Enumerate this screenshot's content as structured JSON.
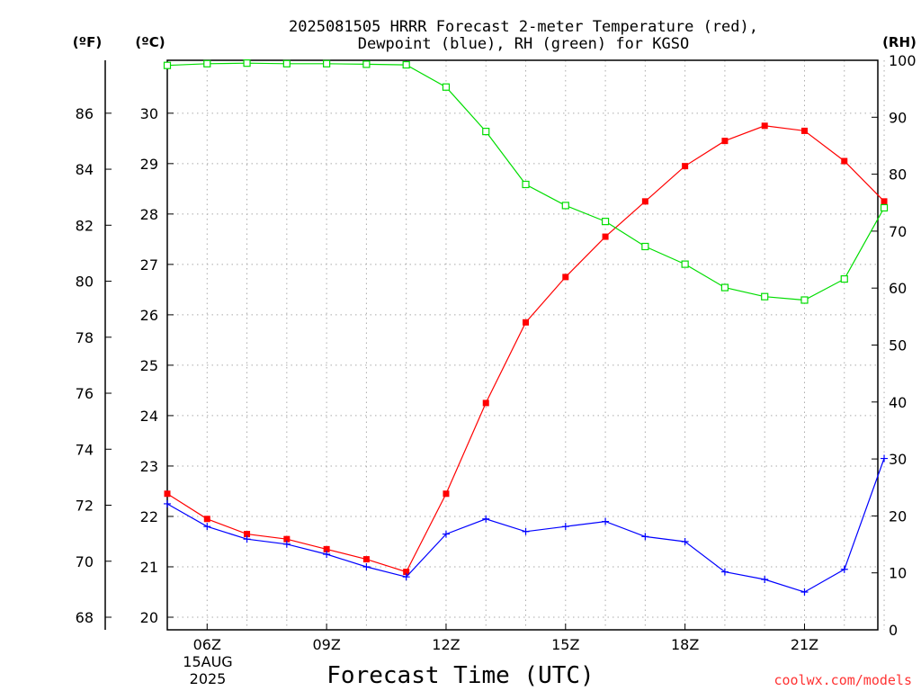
{
  "chart_data": {
    "type": "line",
    "title": "2025081505 HRRR Forecast 2-meter Temperature (red),",
    "subtitle": "Dewpoint (blue), RH (green) for KGSO",
    "xlabel": "Forecast Time (UTC)",
    "units": {
      "left_outer": "(ºF)",
      "left_inner": "(ºC)",
      "right": "(RH)"
    },
    "date_labels": [
      "15AUG",
      "2025"
    ],
    "x": [
      "05Z",
      "06Z",
      "07Z",
      "08Z",
      "09Z",
      "10Z",
      "11Z",
      "12Z",
      "13Z",
      "14Z",
      "15Z",
      "16Z",
      "17Z",
      "18Z",
      "19Z",
      "20Z",
      "21Z",
      "22Z",
      "23Z"
    ],
    "x_ticks": [
      {
        "index": 1,
        "label": "06Z"
      },
      {
        "index": 4,
        "label": "09Z"
      },
      {
        "index": 7,
        "label": "12Z"
      },
      {
        "index": 10,
        "label": "15Z"
      },
      {
        "index": 13,
        "label": "18Z"
      },
      {
        "index": 16,
        "label": "21Z"
      }
    ],
    "axes": {
      "celsius": {
        "range": [
          19.75,
          31.05
        ],
        "ticks": [
          20,
          21,
          22,
          23,
          24,
          25,
          26,
          27,
          28,
          29,
          30
        ]
      },
      "fahrenheit": {
        "ticks": [
          68,
          70,
          72,
          74,
          76,
          78,
          80,
          82,
          84,
          86
        ]
      },
      "rh": {
        "range": [
          0,
          100
        ],
        "ticks": [
          0,
          10,
          20,
          30,
          40,
          50,
          60,
          70,
          80,
          90,
          100
        ]
      }
    },
    "grid": true,
    "series": [
      {
        "name": "Temperature",
        "axis": "celsius",
        "color": "#ff0000",
        "marker": "filled-square",
        "values": [
          22.45,
          21.95,
          21.65,
          21.55,
          21.35,
          21.15,
          20.9,
          22.45,
          24.25,
          25.85,
          26.75,
          27.55,
          28.25,
          28.95,
          29.45,
          29.75,
          29.65,
          29.05,
          28.25
        ]
      },
      {
        "name": "Dewpoint",
        "axis": "celsius",
        "color": "#0000ff",
        "marker": "plus",
        "values": [
          22.25,
          21.8,
          21.55,
          21.45,
          21.25,
          21.0,
          20.8,
          21.65,
          21.95,
          21.7,
          21.8,
          21.9,
          21.6,
          21.5,
          20.9,
          20.75,
          20.5,
          20.95,
          23.15
        ]
      },
      {
        "name": "RH",
        "axis": "rh",
        "color": "#00dd00",
        "marker": "open-square",
        "values": [
          99.1,
          99.4,
          99.5,
          99.4,
          99.4,
          99.3,
          99.2,
          95.3,
          87.5,
          78.2,
          74.5,
          71.7,
          67.3,
          64.2,
          60.1,
          58.5,
          57.9,
          61.6,
          74.1
        ]
      }
    ]
  },
  "credit": {
    "text": "coolwx.com/models",
    "color": "#ff3333"
  }
}
